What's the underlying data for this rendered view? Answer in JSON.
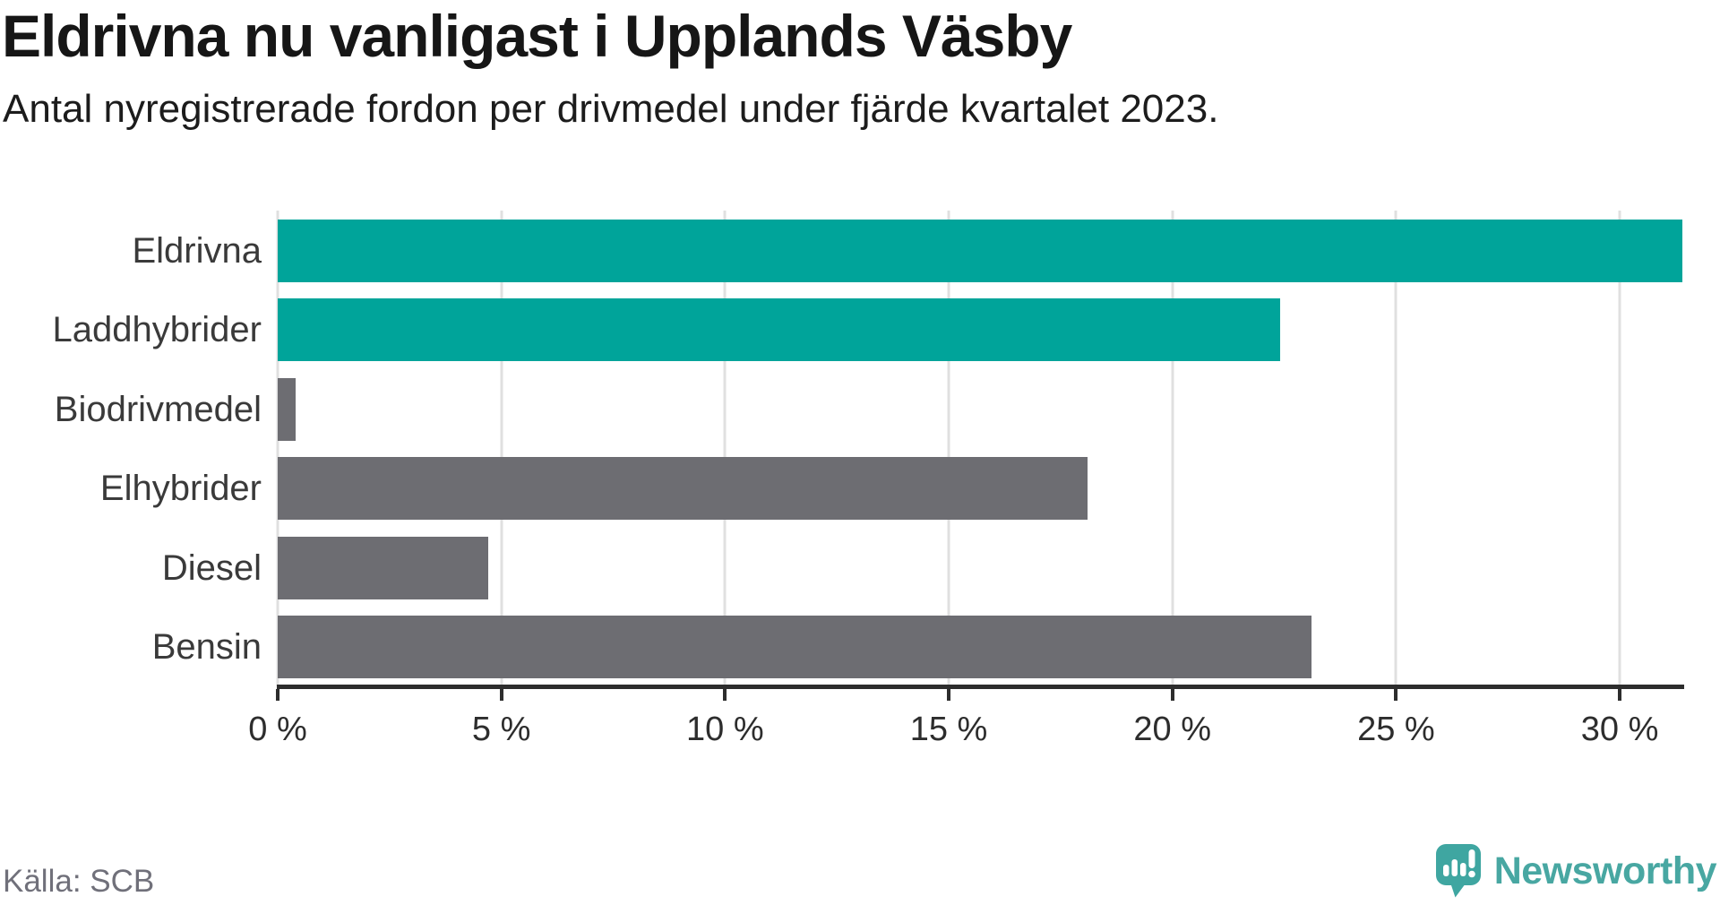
{
  "header": {
    "title": "Eldrivna nu vanligast i Upplands Väsby",
    "subtitle": "Antal nyregistrerade fordon per drivmedel under fjärde kvartalet 2023."
  },
  "footer": {
    "source": "Källa: SCB",
    "brand": "Newsworthy"
  },
  "colors": {
    "highlight_teal": "#00a49a",
    "neutral_gray": "#6d6d72",
    "gridline": "#e0e0e0",
    "axis": "#2d2d2d",
    "brand_teal": "#48a7a2"
  },
  "chart_data": {
    "type": "bar",
    "orientation": "horizontal",
    "title": "Eldrivna nu vanligast i Upplands Väsby",
    "subtitle": "Antal nyregistrerade fordon per drivmedel under fjärde kvartalet 2023.",
    "categories": [
      "Eldrivna",
      "Laddhybrider",
      "Biodrivmedel",
      "Elhybrider",
      "Diesel",
      "Bensin"
    ],
    "values": [
      31.4,
      22.4,
      0.4,
      18.1,
      4.7,
      23.1
    ],
    "unit": "%",
    "bar_colors": [
      "#00a49a",
      "#00a49a",
      "#6d6d72",
      "#6d6d72",
      "#6d6d72",
      "#6d6d72"
    ],
    "xlim": [
      0,
      31.4
    ],
    "xticks": [
      0,
      5,
      10,
      15,
      20,
      25,
      30
    ],
    "xtick_labels": [
      "0 %",
      "5 %",
      "10 %",
      "15 %",
      "20 %",
      "25 %",
      "30 %"
    ],
    "grid": "vertical",
    "legend": "none",
    "source": "Källa: SCB"
  }
}
